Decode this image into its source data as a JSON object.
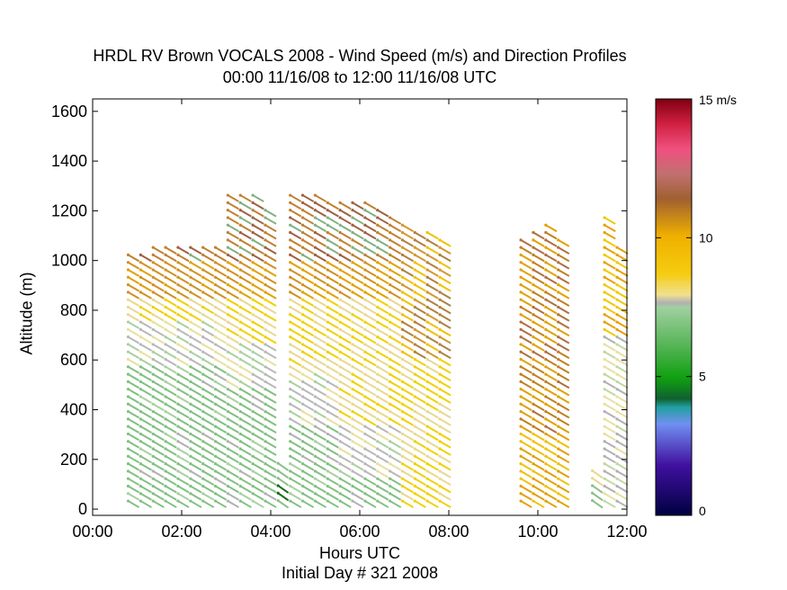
{
  "chart_data": {
    "type": "scatter",
    "title": "HRDL RV Brown VOCALS 2008 - Wind Speed (m/s) and Direction Profiles",
    "subtitle": "00:00 11/16/08 to 12:00 11/16/08  UTC",
    "xlabel": "Hours UTC",
    "xlabel_sub": "Initial Day # 321  2008",
    "ylabel": "Altitude (m)",
    "xlim": [
      0,
      12
    ],
    "ylim": [
      0,
      1600
    ],
    "x_ticks": [
      "00:00",
      "02:00",
      "04:00",
      "06:00",
      "08:00",
      "10:00",
      "12:00"
    ],
    "y_ticks": [
      "0",
      "200",
      "400",
      "600",
      "800",
      "1000",
      "1200",
      "1400",
      "1600"
    ],
    "colorbar": {
      "label_top": "15 m/s",
      "tick_labels": [
        "10",
        "5",
        "0"
      ],
      "range": [
        0,
        15
      ]
    },
    "profiles": [
      {
        "t": 0.92,
        "top": 1020
      },
      {
        "t": 1.2,
        "top": 1010
      },
      {
        "t": 1.48,
        "top": 1050
      },
      {
        "t": 1.76,
        "top": 1060
      },
      {
        "t": 2.04,
        "top": 1060
      },
      {
        "t": 2.32,
        "top": 1060
      },
      {
        "t": 2.6,
        "top": 1060
      },
      {
        "t": 2.88,
        "top": 1040
      },
      {
        "t": 3.16,
        "top": 1270
      },
      {
        "t": 3.44,
        "top": 1260
      },
      {
        "t": 3.72,
        "top": 1250
      },
      {
        "t": 4.0,
        "top": 1200
      },
      {
        "t": 4.28,
        "top": 170
      },
      {
        "t": 4.56,
        "top": 1250
      },
      {
        "t": 4.84,
        "top": 1270
      },
      {
        "t": 5.12,
        "top": 1250
      },
      {
        "t": 5.4,
        "top": 1230
      },
      {
        "t": 5.68,
        "top": 1220
      },
      {
        "t": 5.96,
        "top": 1230
      },
      {
        "t": 6.24,
        "top": 1230
      },
      {
        "t": 6.52,
        "top": 1210
      },
      {
        "t": 6.8,
        "top": 1180
      },
      {
        "t": 7.08,
        "top": 1150
      },
      {
        "t": 7.36,
        "top": 1110
      },
      {
        "t": 7.64,
        "top": 1100
      },
      {
        "t": 7.92,
        "top": 1090
      },
      {
        "t": 9.74,
        "top": 1090
      },
      {
        "t": 10.02,
        "top": 1110
      },
      {
        "t": 10.3,
        "top": 1130
      },
      {
        "t": 10.58,
        "top": 1080
      },
      {
        "t": 11.34,
        "top": 140
      },
      {
        "t": 11.62,
        "top": 1170
      },
      {
        "t": 11.9,
        "top": 1040
      }
    ]
  }
}
